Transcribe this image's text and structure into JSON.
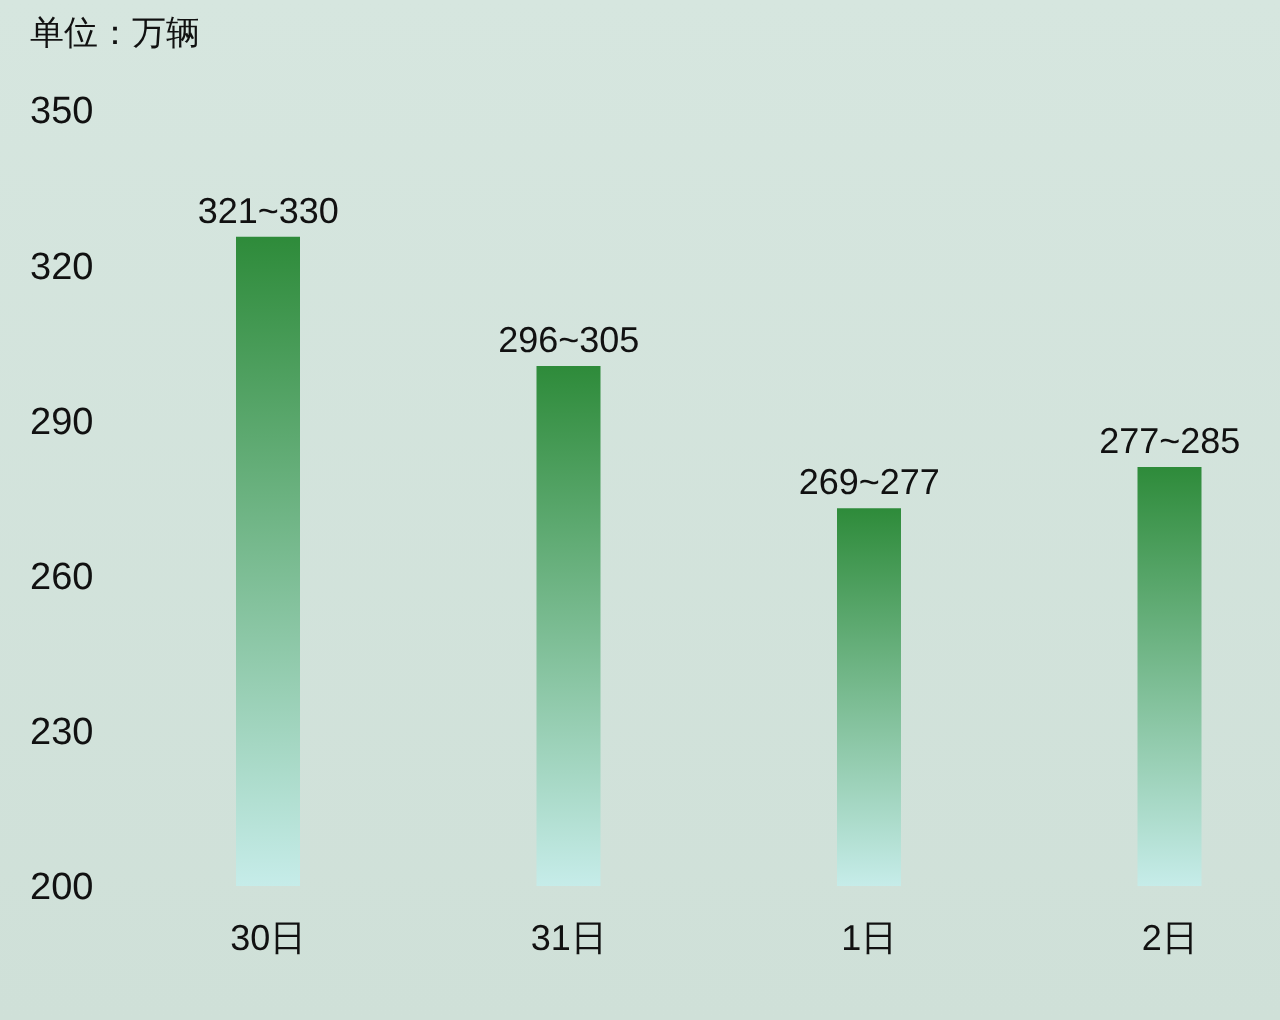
{
  "chart_data": {
    "type": "bar",
    "ylabel": "单位：万辆",
    "categories": [
      "30日",
      "31日",
      "1日",
      "2日"
    ],
    "values": [
      325.5,
      300.5,
      273,
      281
    ],
    "annotations": [
      {
        "text": "321~330",
        "x": "30日",
        "y": 325.5
      },
      {
        "text": "296~305",
        "x": "31日",
        "y": 300.5
      },
      {
        "text": "269~277",
        "x": "1日",
        "y": 273
      },
      {
        "text": "277~285",
        "x": "2日",
        "y": 281
      }
    ],
    "color": "#2e8b3a",
    "ylim": [
      200,
      350
    ],
    "yticks": [
      200,
      230,
      260,
      290,
      320,
      350
    ]
  }
}
